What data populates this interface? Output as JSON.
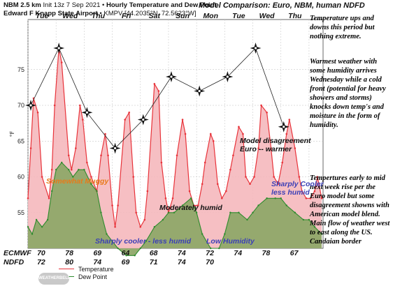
{
  "header": {
    "line1_bold": "NBM 2.5 km",
    "line1_rest": " Init 13z 7 Sep 2021 • ",
    "line1_bold2": "Hourly Temperature and Dew Point",
    "line2_bold": "Edward F Knapp State Airport",
    "line2_rest": " • KMPV [44.2035°N, 72.5623°W]",
    "model_title": "Model Comparison: Euro, NBM, human NDFD"
  },
  "notes": [
    "Temperature ups and downs this period but nothing extreme.",
    "Warmest weather with some humidity arrives Wednesday while a cold front (potential for heavy showers and storms) knocks down temp's and moisture in the form of humidity.",
    "Tempertures early to mid next week rise per the Euro model but some disagreement showns with American model blend. Main flow of weather west to east along the US. Candaian border"
  ],
  "annotations": {
    "muggy": "Somewhat Muggy",
    "moderately_humid": "Moderately humid",
    "cooler_1": "Sharply cooler - less humid",
    "low_humidity": "Low Humidity",
    "cooler_2_line1": "Sharply Cooler",
    "cooler_2_line2": "less humid",
    "disagree_line1": "Model disagreement",
    "disagree_line2": "Euro -- warmer"
  },
  "rows": {
    "ecmwf_label": "ECMWF",
    "ndfd_label": "NDFD",
    "ecmwf": [
      "70",
      "78",
      "69",
      "64",
      "68",
      "74",
      "72",
      "74",
      "78",
      "67"
    ],
    "ndfd": [
      "72",
      "80",
      "74",
      "69",
      "71",
      "74",
      "70"
    ]
  },
  "legend": {
    "temperature": "Temperature",
    "dewpoint": "Dew Point"
  },
  "logo_text": "WEATHERBELL",
  "colors": {
    "temp_line": "#e8333a",
    "temp_fill": "#f5b8bc",
    "dew_line": "#2e8b2e",
    "dew_fill": "#8fa869",
    "ecmwf_line": "#222222"
  },
  "chart_data": {
    "type": "line",
    "ylabel": "°F",
    "ylim": [
      50,
      82
    ],
    "yticks": [
      55,
      60,
      65,
      70,
      75
    ],
    "x_unit": "day",
    "xlim": [
      0,
      10.5
    ],
    "day_labels": [
      "Tue",
      "Wed",
      "Thu",
      "Fri",
      "Sat",
      "Sun",
      "Mon",
      "Tue",
      "Wed",
      "Thu"
    ],
    "grid": true,
    "legend_position": "bottom-left",
    "series": [
      {
        "name": "Temperature",
        "x": [
          0.0,
          0.1,
          0.2,
          0.35,
          0.5,
          0.75,
          0.85,
          0.95,
          1.1,
          1.2,
          1.45,
          1.55,
          1.7,
          1.85,
          1.95,
          2.1,
          2.25,
          2.45,
          2.6,
          2.75,
          2.85,
          3.0,
          3.1,
          3.2,
          3.45,
          3.6,
          3.75,
          3.85,
          4.0,
          4.15,
          4.25,
          4.5,
          4.65,
          4.75,
          4.9,
          5.0,
          5.15,
          5.3,
          5.5,
          5.6,
          5.75,
          5.9,
          6.05,
          6.2,
          6.3,
          6.5,
          6.6,
          6.75,
          6.9,
          7.05,
          7.2,
          7.3,
          7.5,
          7.65,
          7.75,
          7.9,
          8.05,
          8.2,
          8.3,
          8.5,
          8.65,
          8.75,
          8.9,
          9.05,
          9.2,
          9.3,
          9.5,
          9.65,
          9.75,
          9.9,
          10.05,
          10.2,
          10.3,
          10.45
        ],
        "y": [
          57,
          64,
          71,
          69,
          60,
          57,
          61,
          70,
          78,
          76,
          63,
          61,
          64,
          70,
          68,
          62,
          60,
          58,
          63,
          66,
          63,
          56,
          53,
          56,
          68,
          69,
          60,
          55,
          53,
          54,
          58,
          73,
          72,
          62,
          57,
          55,
          57,
          63,
          68,
          66,
          58,
          56,
          56,
          59,
          62,
          66,
          65,
          59,
          57,
          58,
          61,
          63,
          67,
          66,
          60,
          59,
          60,
          64,
          70,
          69,
          64,
          60,
          59,
          62,
          66,
          68,
          64,
          60,
          58,
          57,
          57,
          58,
          60,
          57
        ]
      },
      {
        "name": "Dew Point",
        "x": [
          0.0,
          0.15,
          0.3,
          0.5,
          0.7,
          0.85,
          1.0,
          1.2,
          1.45,
          1.6,
          1.8,
          2.0,
          2.25,
          2.45,
          2.6,
          2.8,
          3.0,
          3.2,
          3.5,
          3.8,
          4.0,
          4.2,
          4.5,
          4.8,
          5.0,
          5.2,
          5.5,
          5.8,
          6.0,
          6.2,
          6.5,
          6.8,
          7.0,
          7.2,
          7.5,
          7.8,
          8.0,
          8.2,
          8.5,
          8.8,
          9.0,
          9.2,
          9.5,
          9.8,
          10.0,
          10.2,
          10.45
        ],
        "y": [
          53,
          52,
          54,
          53,
          54,
          58,
          61,
          62,
          61,
          60,
          61,
          61,
          59,
          58,
          55,
          52,
          51,
          50,
          49,
          49,
          50,
          51,
          53,
          54,
          55,
          55,
          56,
          57,
          55,
          52,
          50,
          50,
          52,
          55,
          55,
          54,
          55,
          56,
          57,
          57,
          57,
          56,
          55,
          54,
          54,
          53,
          52
        ]
      },
      {
        "name": "ECMWF",
        "x": [
          0.1,
          1.1,
          2.1,
          3.1,
          4.1,
          5.1,
          6.1,
          7.1,
          8.1,
          9.1
        ],
        "y": [
          70,
          78,
          69,
          64,
          68,
          74,
          72,
          74,
          78,
          67
        ]
      }
    ]
  }
}
